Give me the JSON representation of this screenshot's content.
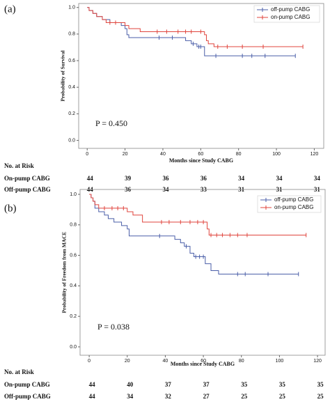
{
  "chart_data": [
    {
      "type": "step",
      "panel_label": "(a)",
      "ylabel": "Probability of Survival",
      "xlabel": "Months since Study CABG",
      "annotation": "P = 0.450",
      "xlim": [
        -4.5,
        125
      ],
      "ylim": [
        -0.06,
        1.03
      ],
      "xticks": [
        0,
        20,
        40,
        60,
        80,
        100,
        120
      ],
      "yticks": [
        {
          "value": 0,
          "label": "0.0"
        },
        {
          "value": 0.2,
          "label": "0.2"
        },
        {
          "value": 0.4,
          "label": "0.4"
        },
        {
          "value": 0.6,
          "label": "0.6"
        },
        {
          "value": 0.8,
          "label": "0.8"
        },
        {
          "value": 1,
          "label": "1.0"
        }
      ],
      "legend": "upper right",
      "series": [
        {
          "name": "off-pump CABG",
          "color": "#4a5ea8",
          "x": [
            0,
            1,
            3,
            5,
            8,
            12,
            18,
            20,
            21,
            22,
            52,
            55,
            58,
            62
          ],
          "values": [
            1,
            0.977,
            0.955,
            0.932,
            0.909,
            0.886,
            0.864,
            0.841,
            0.795,
            0.773,
            0.75,
            0.727,
            0.705,
            0.636
          ],
          "censor_x": [
            38,
            45,
            56,
            59,
            60,
            68,
            82,
            87,
            94,
            110
          ],
          "censor_values": [
            0.773,
            0.773,
            0.727,
            0.705,
            0.705,
            0.636,
            0.636,
            0.636,
            0.636,
            0.636
          ]
        },
        {
          "name": "on-pump CABG",
          "color": "#e0443c",
          "x": [
            0,
            1,
            3,
            5,
            8,
            10,
            20,
            22,
            28,
            62,
            63,
            64,
            67
          ],
          "values": [
            1,
            0.977,
            0.955,
            0.932,
            0.909,
            0.886,
            0.864,
            0.841,
            0.818,
            0.795,
            0.75,
            0.727,
            0.705
          ],
          "censor_x": [
            12,
            15,
            37,
            42,
            48,
            52,
            55,
            60,
            69,
            74,
            82,
            93,
            114
          ],
          "censor_values": [
            0.886,
            0.886,
            0.818,
            0.818,
            0.818,
            0.818,
            0.818,
            0.818,
            0.705,
            0.705,
            0.705,
            0.705,
            0.705
          ]
        }
      ],
      "risk_table": {
        "title": "No. at Risk",
        "rows": [
          {
            "label": "On-pump CABG",
            "values": [
              44,
              39,
              36,
              36,
              34,
              34,
              34
            ]
          },
          {
            "label": "Off-pump CABG",
            "values": [
              44,
              36,
              34,
              33,
              31,
              31,
              31
            ]
          }
        ]
      }
    },
    {
      "type": "step",
      "panel_label": "(b)",
      "ylabel": "Probability of Freedom from MACE",
      "xlabel": "Months since Study CABG",
      "annotation": "P = 0.038",
      "xlim": [
        -4.8,
        124
      ],
      "ylim": [
        -0.055,
        1.032
      ],
      "xticks": [
        0,
        20,
        40,
        60,
        80,
        100,
        120
      ],
      "yticks": [
        {
          "value": 0,
          "label": "0.0"
        },
        {
          "value": 0.2,
          "label": "0.2"
        },
        {
          "value": 0.4,
          "label": "0.4"
        },
        {
          "value": 0.6,
          "label": "0.6"
        },
        {
          "value": 0.8,
          "label": "0.8"
        },
        {
          "value": 1,
          "label": "1.0"
        }
      ],
      "legend": "upper right",
      "series": [
        {
          "name": "off-pump CABG",
          "color": "#4a5ea8",
          "x": [
            0,
            1,
            2,
            3,
            5,
            8,
            10,
            13,
            17,
            20,
            21,
            45,
            48,
            50,
            53,
            55,
            61,
            64,
            68
          ],
          "values": [
            1,
            0.977,
            0.955,
            0.909,
            0.886,
            0.864,
            0.841,
            0.818,
            0.795,
            0.773,
            0.727,
            0.705,
            0.682,
            0.659,
            0.614,
            0.591,
            0.545,
            0.5,
            0.477
          ],
          "censor_x": [
            37,
            51,
            56,
            58,
            60,
            78,
            82,
            94,
            110
          ],
          "censor_values": [
            0.727,
            0.659,
            0.591,
            0.591,
            0.591,
            0.477,
            0.477,
            0.477,
            0.477
          ]
        },
        {
          "name": "on-pump CABG",
          "color": "#e0443c",
          "x": [
            0,
            1,
            2,
            3,
            5,
            20,
            23,
            28,
            62,
            63
          ],
          "values": [
            1,
            0.977,
            0.955,
            0.932,
            0.909,
            0.886,
            0.864,
            0.818,
            0.773,
            0.733
          ],
          "censor_x": [
            8,
            12,
            15,
            18,
            38,
            42,
            48,
            53,
            57,
            60,
            64,
            67,
            70,
            74,
            78,
            83,
            114
          ],
          "censor_values": [
            0.909,
            0.909,
            0.909,
            0.909,
            0.818,
            0.818,
            0.818,
            0.818,
            0.818,
            0.818,
            0.733,
            0.733,
            0.733,
            0.733,
            0.733,
            0.733,
            0.733
          ]
        }
      ],
      "risk_table": {
        "title": "No. at Risk",
        "rows": [
          {
            "label": "On-pump CABG",
            "values": [
              44,
              40,
              37,
              37,
              35,
              35,
              35
            ]
          },
          {
            "label": "Off-pump CABG",
            "values": [
              44,
              34,
              32,
              27,
              25,
              25,
              25
            ]
          }
        ]
      }
    }
  ]
}
